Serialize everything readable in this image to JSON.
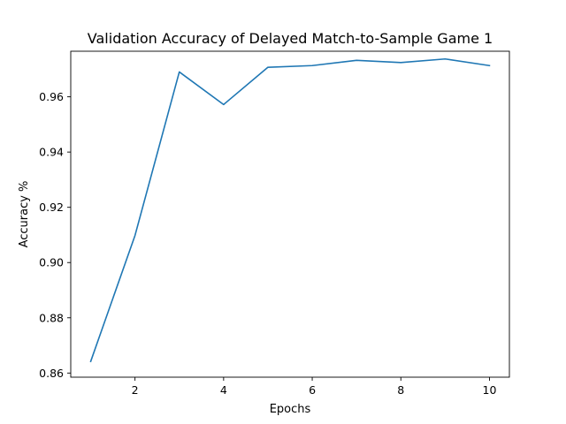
{
  "chart_data": {
    "type": "line",
    "title": "Validation Accuracy of Delayed Match-to-Sample Game 1",
    "xlabel": "Epochs",
    "ylabel": "Accuracy %",
    "xlim": [
      0.55,
      10.45
    ],
    "ylim": [
      0.8585,
      0.9765
    ],
    "xticks": [
      2,
      4,
      6,
      8,
      10
    ],
    "xtick_labels": [
      "2",
      "4",
      "6",
      "8",
      "10"
    ],
    "yticks": [
      0.86,
      0.88,
      0.9,
      0.92,
      0.94,
      0.96
    ],
    "ytick_labels": [
      "0.86",
      "0.88",
      "0.90",
      "0.92",
      "0.94",
      "0.96"
    ],
    "grid": false,
    "series": [
      {
        "color": "#1f77b4",
        "x": [
          1,
          2,
          3,
          4,
          5,
          6,
          7,
          8,
          9,
          10
        ],
        "y": [
          0.8642,
          0.9098,
          0.969,
          0.9572,
          0.9707,
          0.9713,
          0.9732,
          0.9724,
          0.9737,
          0.9713
        ]
      }
    ]
  }
}
